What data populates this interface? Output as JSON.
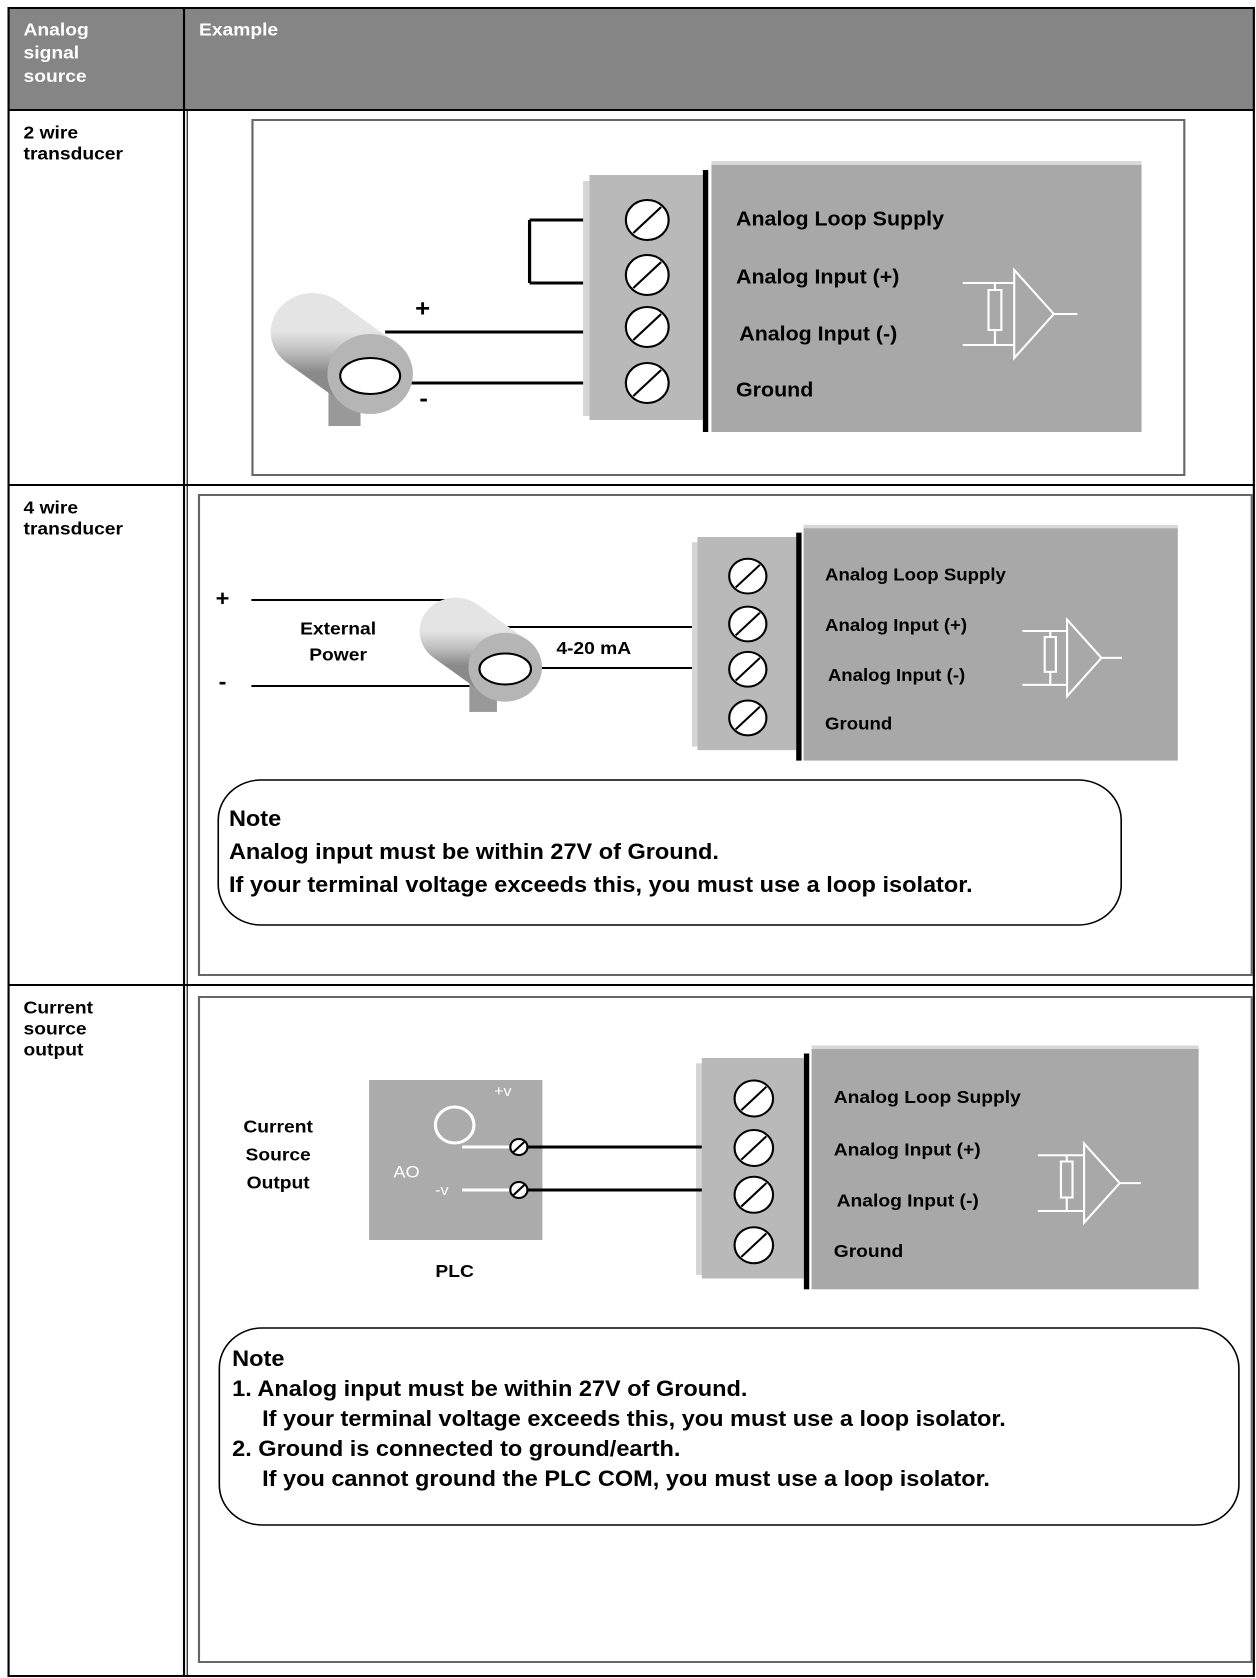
{
  "header": {
    "source": [
      "Analog",
      "signal",
      "source"
    ],
    "example": "Example"
  },
  "rows": [
    {
      "source": [
        "2 wire",
        "transducer"
      ],
      "terminals": [
        "Analog Loop Supply",
        "Analog Input (+)",
        "Analog Input (-)",
        "Ground"
      ],
      "positive": "+",
      "negative": "-"
    },
    {
      "source": [
        "4 wire",
        "transducer"
      ],
      "terminals": [
        "Analog Loop Supply",
        "Analog Input (+)",
        "Analog Input (-)",
        "Ground"
      ],
      "positive": "+",
      "negative": "-",
      "power": [
        "External",
        "Power"
      ],
      "current": "4-20 mA",
      "note": [
        "Note",
        "Analog input must be within 27V of Ground.",
        "If your terminal voltage exceeds this, you must use a loop isolator."
      ]
    },
    {
      "source": [
        "Current",
        "source",
        "output"
      ],
      "terminals": [
        "Analog Loop Supply",
        "Analog Input (+)",
        "Analog Input (-)",
        "Ground"
      ],
      "device": [
        "Current",
        "Source",
        "Output"
      ],
      "plus_v": "+v",
      "minus_v": "-v",
      "ao": "AO",
      "plc": "PLC",
      "note": [
        "Note",
        "1. Analog input must be within 27V of Ground.",
        "If your terminal voltage exceeds this, you must use a loop isolator.",
        "2. Ground is connected to ground/earth.",
        "If you cannot ground the PLC COM, you must use a loop isolator."
      ]
    }
  ]
}
